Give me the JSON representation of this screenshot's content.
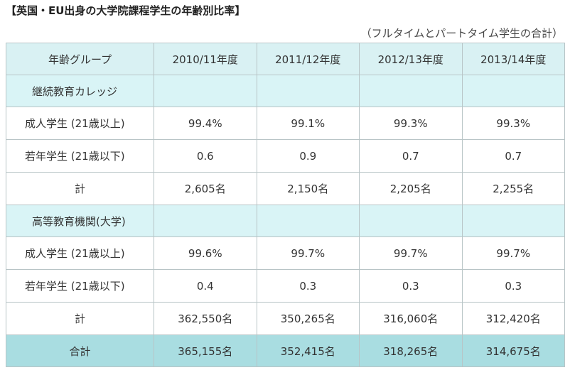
{
  "title": "【英国・EU出身の大学院課程学生の年齢別比率】",
  "note": "（フルタイムとパートタイム学生の合計）",
  "headers": [
    "年齢グループ",
    "2010/11年度",
    "2011/12年度",
    "2012/13年度",
    "2013/14年度"
  ],
  "sections": [
    {
      "name": "継続教育カレッジ",
      "rows": [
        {
          "label": "成人学生 (21歳以上)",
          "values": [
            "99.4%",
            "99.1%",
            "99.3%",
            "99.3%"
          ]
        },
        {
          "label": "若年学生 (21歳以下)",
          "values": [
            "0.6",
            "0.9",
            "0.7",
            "0.7"
          ]
        }
      ],
      "total": {
        "label": "計",
        "values": [
          "2,605名",
          "2,150名",
          "2,205名",
          "2,255名"
        ]
      }
    },
    {
      "name": "高等教育機関(大学)",
      "rows": [
        {
          "label": "成人学生 (21歳以上)",
          "values": [
            "99.6%",
            "99.7%",
            "99.7%",
            "99.7%"
          ]
        },
        {
          "label": "若年学生 (21歳以下)",
          "values": [
            "0.4",
            "0.3",
            "0.3",
            "0.3"
          ]
        }
      ],
      "total": {
        "label": "計",
        "values": [
          "362,550名",
          "350,265名",
          "316,060名",
          "312,420名"
        ]
      }
    }
  ],
  "grand_total": {
    "label": "合計",
    "values": [
      "365,155名",
      "352,415名",
      "318,265名",
      "314,675名"
    ]
  },
  "colors": {
    "header_bg": "#d9f1f3",
    "section_bg": "#d9f4f6",
    "grand_bg": "#a9dde1",
    "border": "#b8c4c6"
  }
}
